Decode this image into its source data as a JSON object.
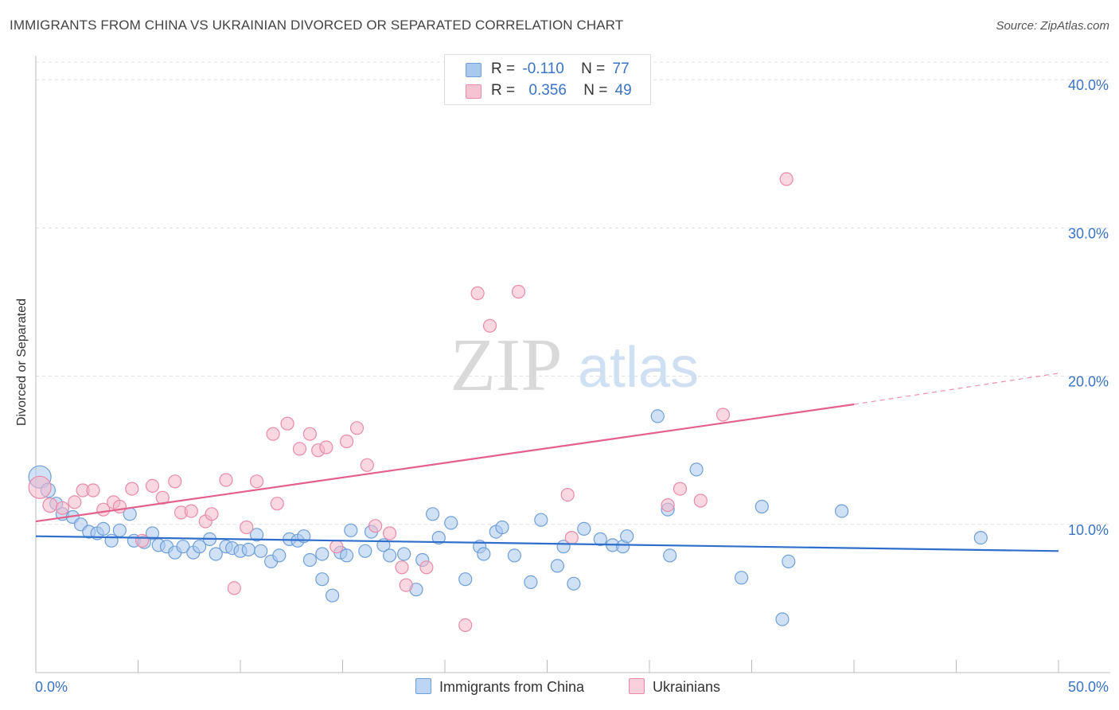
{
  "title": "IMMIGRANTS FROM CHINA VS UKRAINIAN DIVORCED OR SEPARATED CORRELATION CHART",
  "source": "Source: ZipAtlas.com",
  "watermark": {
    "zip": "ZIP",
    "atlas": "atlas"
  },
  "legend": {
    "r_label": "R =",
    "n_label": "N =",
    "rows": [
      {
        "r": "-0.110",
        "n": "77"
      },
      {
        "r": "0.356",
        "n": "49"
      }
    ]
  },
  "bottom_legend": [
    "Immigrants from China",
    "Ukrainians"
  ],
  "chart_data": {
    "type": "scatter",
    "title": "IMMIGRANTS FROM CHINA VS UKRAINIAN DIVORCED OR SEPARATED CORRELATION CHART",
    "xlabel": "",
    "ylabel": "Divorced or Separated",
    "xlim": [
      0,
      50
    ],
    "ylim": [
      0,
      42
    ],
    "x_tick_labels": [
      "0.0%",
      "50.0%"
    ],
    "y_ticks": [
      {
        "value": 10,
        "label": "10.0%"
      },
      {
        "value": 20,
        "label": "20.0%"
      },
      {
        "value": 30,
        "label": "30.0%"
      },
      {
        "value": 40,
        "label": "40.0%"
      }
    ],
    "grid": true,
    "legend_position": "top-center",
    "colors": {
      "china_fill": "#a9c8ee",
      "china_stroke": "#6f9fd8",
      "china_line": "#2f6fcb",
      "ukr_fill": "#f6b8cb",
      "ukr_stroke": "#e98aa8",
      "ukr_line": "#e4608c",
      "axis_text": "#3a73c4"
    },
    "series": [
      {
        "name": "Immigrants from China",
        "r": -0.11,
        "n": 77,
        "trend": {
          "x0": 0,
          "y0": 9.2,
          "x1": 50,
          "y1": 8.2
        },
        "points": [
          [
            0.2,
            13.2,
            14
          ],
          [
            0.6,
            12.3,
            9
          ],
          [
            1.0,
            11.4,
            8
          ],
          [
            1.3,
            10.7,
            8
          ],
          [
            1.8,
            10.5,
            8
          ],
          [
            2.2,
            10.0,
            8
          ],
          [
            2.6,
            9.5,
            8
          ],
          [
            3.0,
            9.4,
            8
          ],
          [
            3.3,
            9.7,
            8
          ],
          [
            3.7,
            8.9,
            8
          ],
          [
            4.1,
            9.6,
            8
          ],
          [
            4.6,
            10.7,
            8
          ],
          [
            4.8,
            8.9,
            8
          ],
          [
            5.3,
            8.8,
            8
          ],
          [
            5.7,
            9.4,
            8
          ],
          [
            6.0,
            8.6,
            8
          ],
          [
            6.4,
            8.5,
            8
          ],
          [
            6.8,
            8.1,
            8
          ],
          [
            7.2,
            8.5,
            8
          ],
          [
            7.7,
            8.1,
            8
          ],
          [
            8.0,
            8.5,
            8
          ],
          [
            8.5,
            9.0,
            8
          ],
          [
            8.8,
            8.0,
            8
          ],
          [
            9.3,
            8.5,
            8
          ],
          [
            9.6,
            8.4,
            8
          ],
          [
            10.0,
            8.2,
            8
          ],
          [
            10.4,
            8.3,
            8
          ],
          [
            10.8,
            9.3,
            8
          ],
          [
            11.0,
            8.2,
            8
          ],
          [
            11.5,
            7.5,
            8
          ],
          [
            11.9,
            7.9,
            8
          ],
          [
            12.4,
            9.0,
            8
          ],
          [
            12.8,
            8.9,
            8
          ],
          [
            13.1,
            9.2,
            8
          ],
          [
            13.4,
            7.6,
            8
          ],
          [
            14.0,
            6.3,
            8
          ],
          [
            14.0,
            8.0,
            8
          ],
          [
            14.5,
            5.2,
            8
          ],
          [
            14.9,
            8.1,
            8
          ],
          [
            15.2,
            7.9,
            8
          ],
          [
            15.4,
            9.6,
            8
          ],
          [
            16.1,
            8.2,
            8
          ],
          [
            16.4,
            9.5,
            8
          ],
          [
            17.0,
            8.6,
            8
          ],
          [
            17.3,
            7.9,
            8
          ],
          [
            18.0,
            8.0,
            8
          ],
          [
            18.6,
            5.6,
            8
          ],
          [
            18.9,
            7.6,
            8
          ],
          [
            19.4,
            10.7,
            8
          ],
          [
            19.7,
            9.1,
            8
          ],
          [
            20.3,
            10.1,
            8
          ],
          [
            21.0,
            6.3,
            8
          ],
          [
            21.7,
            8.5,
            8
          ],
          [
            21.9,
            8.0,
            8
          ],
          [
            22.5,
            9.5,
            8
          ],
          [
            22.8,
            9.8,
            8
          ],
          [
            23.4,
            7.9,
            8
          ],
          [
            24.2,
            6.1,
            8
          ],
          [
            24.7,
            10.3,
            8
          ],
          [
            25.5,
            7.2,
            8
          ],
          [
            25.8,
            8.5,
            8
          ],
          [
            26.3,
            6.0,
            8
          ],
          [
            26.8,
            9.7,
            8
          ],
          [
            27.6,
            9.0,
            8
          ],
          [
            28.2,
            8.6,
            8
          ],
          [
            28.7,
            8.5,
            8
          ],
          [
            28.9,
            9.2,
            8
          ],
          [
            30.4,
            17.3,
            8
          ],
          [
            30.9,
            11.0,
            8
          ],
          [
            31.0,
            7.9,
            8
          ],
          [
            32.3,
            13.7,
            8
          ],
          [
            34.5,
            6.4,
            8
          ],
          [
            35.5,
            11.2,
            8
          ],
          [
            36.5,
            3.6,
            8
          ],
          [
            36.8,
            7.5,
            8
          ],
          [
            39.4,
            10.9,
            8
          ],
          [
            46.2,
            9.1,
            8
          ]
        ]
      },
      {
        "name": "Ukrainians",
        "r": 0.356,
        "n": 49,
        "trend": {
          "x0": 0,
          "y0": 10.2,
          "x1": 40,
          "y1": 18.1,
          "dash_x1": 50,
          "dash_y1": 20.2
        },
        "points": [
          [
            0.2,
            12.5,
            14
          ],
          [
            0.7,
            11.3,
            9
          ],
          [
            1.3,
            11.1,
            8
          ],
          [
            1.9,
            11.5,
            8
          ],
          [
            2.3,
            12.3,
            8
          ],
          [
            2.8,
            12.3,
            8
          ],
          [
            3.3,
            11.0,
            8
          ],
          [
            3.8,
            11.5,
            8
          ],
          [
            4.1,
            11.2,
            8
          ],
          [
            4.7,
            12.4,
            8
          ],
          [
            5.2,
            8.9,
            8
          ],
          [
            5.7,
            12.6,
            8
          ],
          [
            6.2,
            11.8,
            8
          ],
          [
            6.8,
            12.9,
            8
          ],
          [
            7.1,
            10.8,
            8
          ],
          [
            7.6,
            10.9,
            8
          ],
          [
            8.3,
            10.2,
            8
          ],
          [
            8.6,
            10.7,
            8
          ],
          [
            9.3,
            13.0,
            8
          ],
          [
            9.7,
            5.7,
            8
          ],
          [
            10.3,
            9.8,
            8
          ],
          [
            10.8,
            12.9,
            8
          ],
          [
            11.6,
            16.1,
            8
          ],
          [
            11.8,
            11.4,
            8
          ],
          [
            12.3,
            16.8,
            8
          ],
          [
            12.9,
            15.1,
            8
          ],
          [
            13.4,
            16.1,
            8
          ],
          [
            13.8,
            15.0,
            8
          ],
          [
            14.2,
            15.2,
            8
          ],
          [
            14.7,
            8.5,
            8
          ],
          [
            15.2,
            15.6,
            8
          ],
          [
            15.7,
            16.5,
            8
          ],
          [
            16.2,
            14.0,
            8
          ],
          [
            16.6,
            9.9,
            8
          ],
          [
            17.3,
            9.4,
            8
          ],
          [
            17.9,
            7.1,
            8
          ],
          [
            18.1,
            5.9,
            8
          ],
          [
            19.1,
            7.1,
            8
          ],
          [
            21.0,
            3.2,
            8
          ],
          [
            21.6,
            25.6,
            8
          ],
          [
            22.2,
            23.4,
            8
          ],
          [
            23.6,
            25.7,
            8
          ],
          [
            26.0,
            12.0,
            8
          ],
          [
            26.2,
            9.1,
            8
          ],
          [
            30.9,
            11.3,
            8
          ],
          [
            31.5,
            12.4,
            8
          ],
          [
            32.5,
            11.6,
            8
          ],
          [
            33.6,
            17.4,
            8
          ],
          [
            36.7,
            33.3,
            8
          ]
        ]
      }
    ]
  }
}
